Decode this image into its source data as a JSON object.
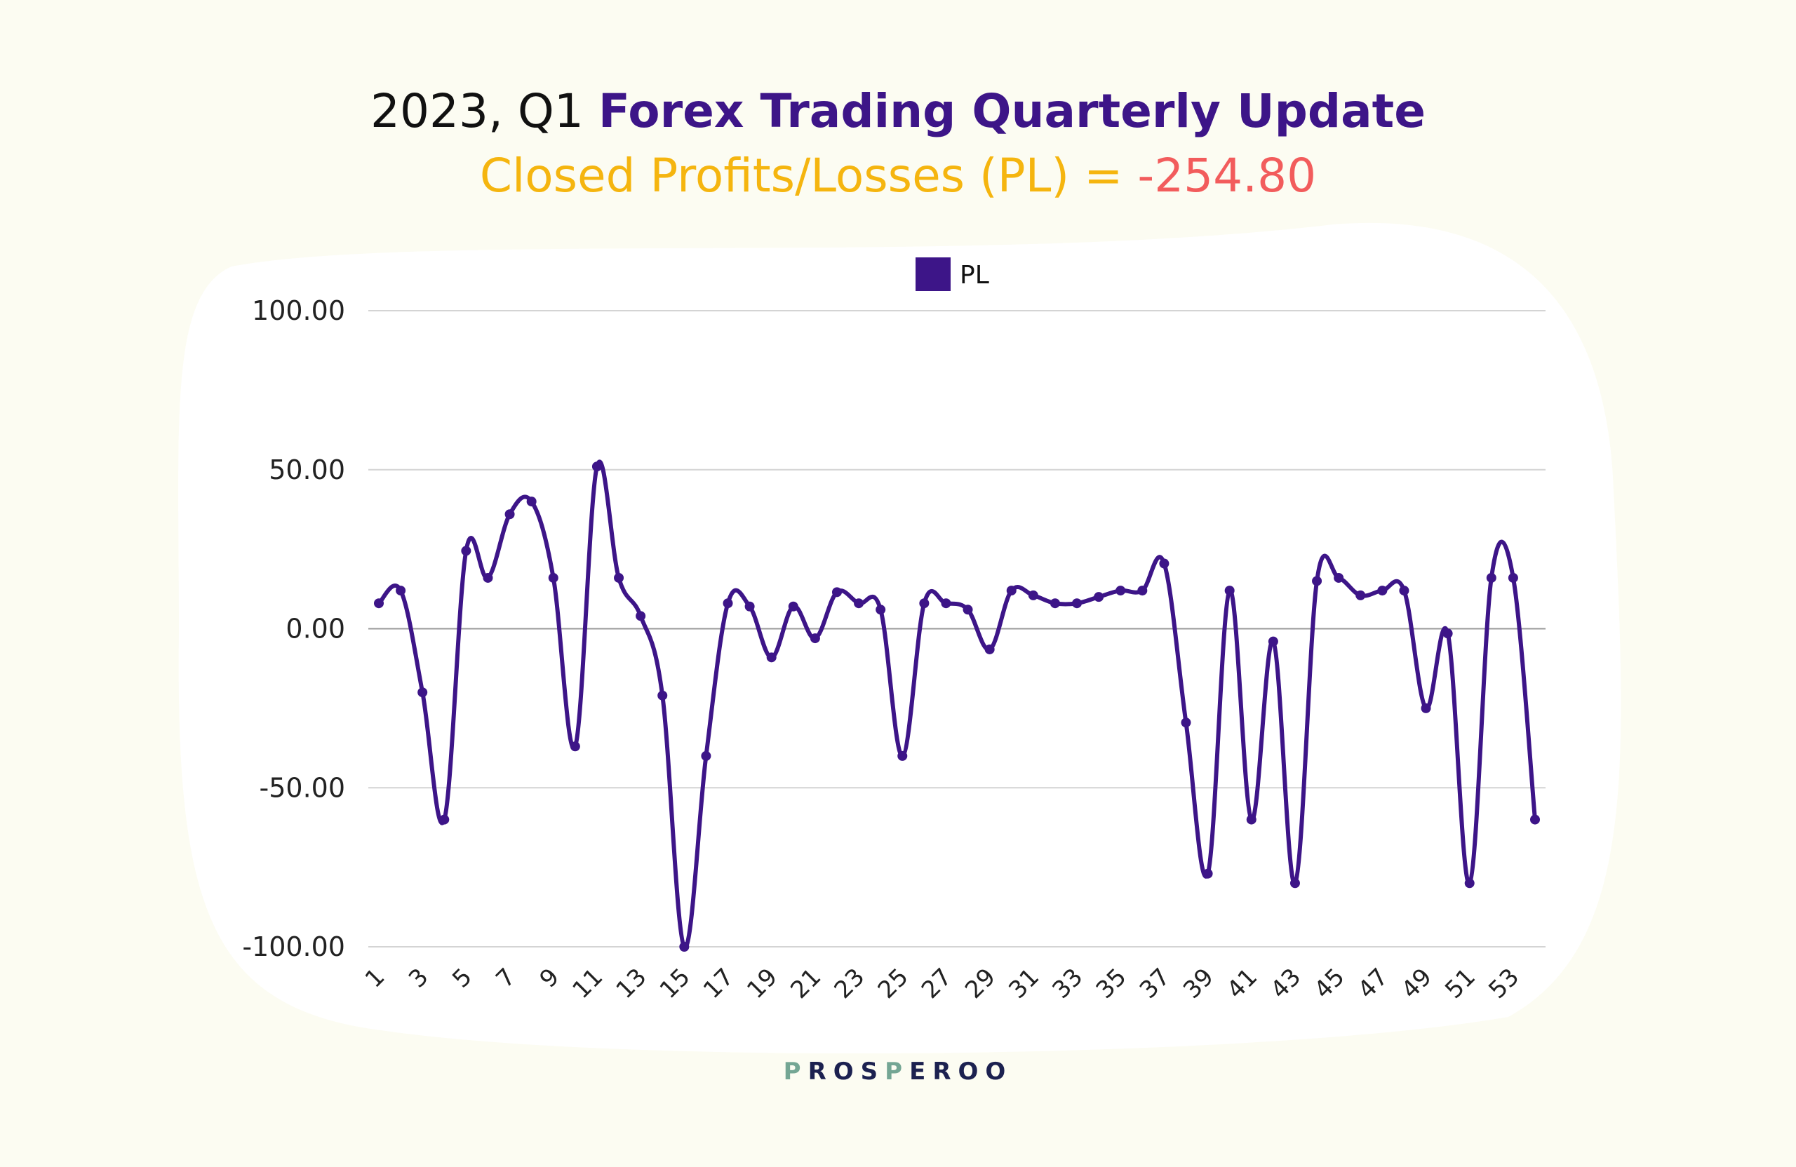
{
  "header": {
    "title_prefix": "2023, Q1 ",
    "title_main": "Forex Trading Quarterly Update",
    "subtitle_label": "Closed Profits/Losses (PL) = ",
    "subtitle_value": "-254.80"
  },
  "colors": {
    "prefix": "#111111",
    "main": "#3d1588",
    "subtitle": "#f5b50f",
    "value": "#f25c5c",
    "line": "#3d1588",
    "background": "#fcfcf2",
    "panel": "#ffffff"
  },
  "chart_data": {
    "type": "line",
    "smooth": true,
    "title": "",
    "legend": {
      "entries": [
        "PL"
      ],
      "placement": "top-center"
    },
    "grid": true,
    "ylim": [
      -100,
      100
    ],
    "yticks": [
      100,
      50,
      0,
      -50,
      -100
    ],
    "ytick_labels": [
      "100.00",
      "50.00",
      "0.00",
      "-50.00",
      "-100.00"
    ],
    "x": [
      1,
      2,
      3,
      4,
      5,
      6,
      7,
      8,
      9,
      10,
      11,
      12,
      13,
      14,
      15,
      16,
      17,
      18,
      19,
      20,
      21,
      22,
      23,
      24,
      25,
      26,
      27,
      28,
      29,
      30,
      31,
      32,
      33,
      34,
      35,
      36,
      37,
      38,
      39,
      40,
      41,
      42,
      43,
      44,
      45,
      46,
      47,
      48,
      49,
      50,
      51,
      52,
      53,
      54
    ],
    "xtick_labels": [
      "1",
      "3",
      "5",
      "7",
      "9",
      "11",
      "13",
      "15",
      "17",
      "19",
      "21",
      "23",
      "25",
      "27",
      "29",
      "31",
      "33",
      "35",
      "37",
      "39",
      "41",
      "43",
      "45",
      "47",
      "49",
      "51",
      "53"
    ],
    "series": [
      {
        "name": "PL",
        "values": [
          8,
          12,
          -20,
          -60,
          24.5,
          16,
          36,
          40,
          16,
          -37,
          51,
          16,
          4,
          -21,
          -100,
          -40,
          8,
          7,
          -9,
          7,
          -3,
          11.5,
          8,
          6,
          -40,
          8,
          8,
          6,
          -6.5,
          12,
          10.5,
          8,
          8,
          10,
          12,
          12,
          20.5,
          -29.5,
          -77,
          12,
          -60,
          -4,
          -80,
          15,
          16,
          10.5,
          12,
          12,
          -25,
          -1.5,
          -80,
          16,
          16,
          -60
        ]
      }
    ]
  },
  "logo": {
    "text": "PROSPEROO"
  }
}
